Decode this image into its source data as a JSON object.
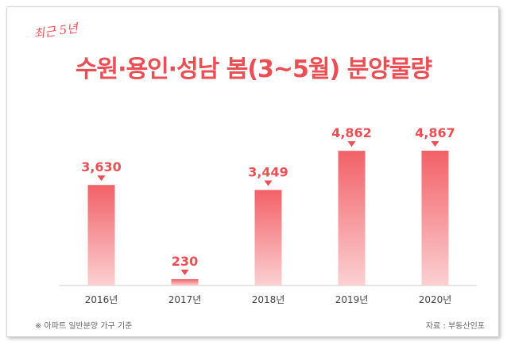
{
  "chart_data": {
    "type": "bar",
    "title": "수원·용인·성남 봄(3~5월) 분양물량",
    "subtitle": "최근 5년",
    "categories": [
      "2016년",
      "2017년",
      "2018년",
      "2019년",
      "2020년"
    ],
    "values": [
      3630,
      230,
      3449,
      4862,
      4867
    ],
    "value_labels": [
      "3,630",
      "230",
      "3,449",
      "4,862",
      "4,867"
    ],
    "ylim": [
      0,
      5200
    ],
    "grid": false,
    "legend": "none",
    "xlabel": "",
    "ylabel": ""
  },
  "footnote": "※ 아파트 일반분양 가구 기준",
  "source": "자료 : 부동산인포",
  "colors": {
    "accent": "#ea4f55",
    "bar_top": "#f26167",
    "bar_bottom": "#fbd0d2",
    "axis": "#cfcfcf"
  }
}
